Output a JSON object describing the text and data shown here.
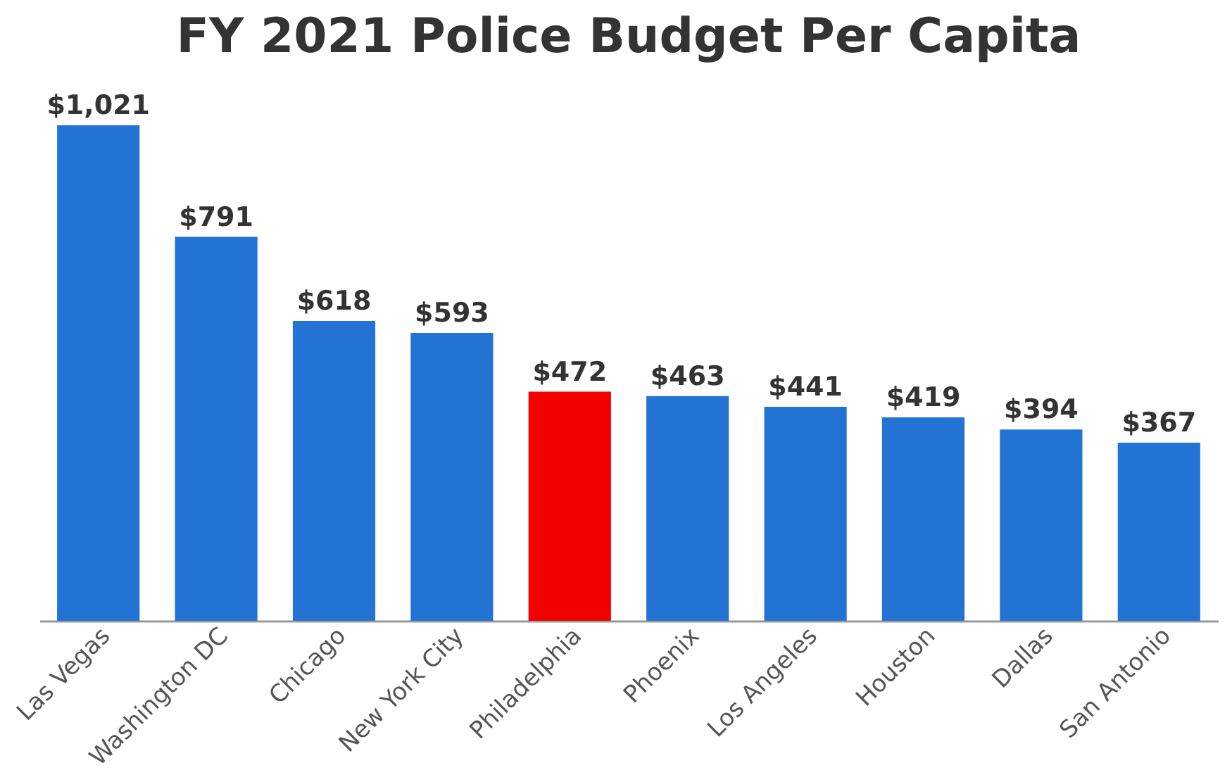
{
  "chart_data": {
    "type": "bar",
    "title": "FY 2021 Police Budget Per Capita",
    "categories": [
      "Las Vegas",
      "Washington DC",
      "Chicago",
      "New York City",
      "Philadelphia",
      "Phoenix",
      "Los Angeles",
      "Houston",
      "Dallas",
      "San Antonio"
    ],
    "values": [
      1021,
      791,
      618,
      593,
      472,
      463,
      441,
      419,
      394,
      367
    ],
    "colors": [
      "#2273d4",
      "#2273d4",
      "#2273d4",
      "#2273d4",
      "#f20000",
      "#2273d4",
      "#2273d4",
      "#2273d4",
      "#2273d4",
      "#2273d4"
    ],
    "value_labels": [
      "$1,021",
      "$791",
      "$618",
      "$593",
      "$472",
      "$463",
      "$441",
      "$419",
      "$394",
      "$367"
    ],
    "grid": false,
    "tick_labels": "x"
  }
}
